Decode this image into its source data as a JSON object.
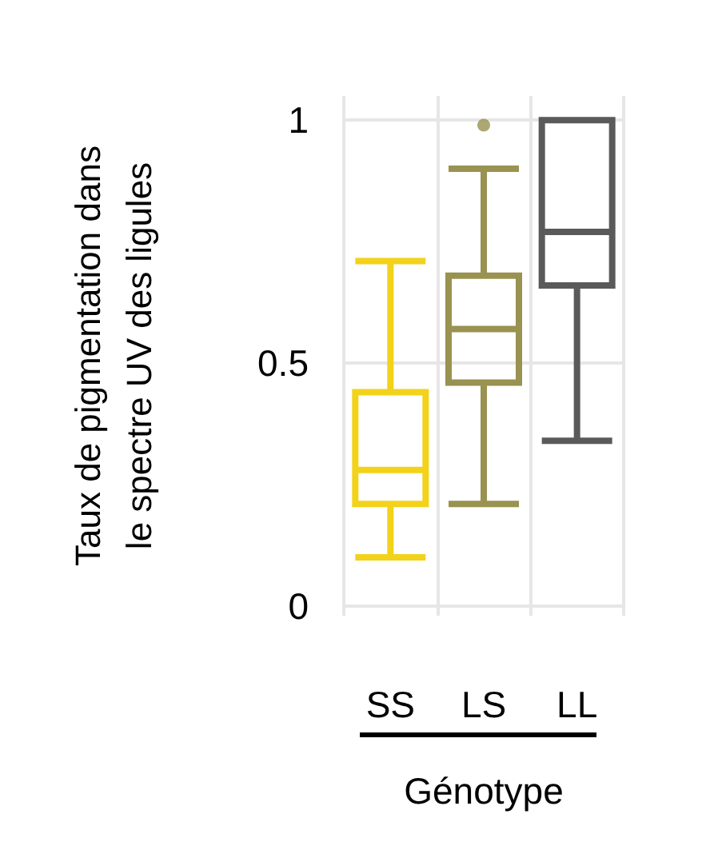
{
  "chart_data": {
    "type": "box",
    "xlabel": "Génotype",
    "ylabel": "Taux de pigmentation dans\nle spectre UV des ligules",
    "categories": [
      "SS",
      "LS",
      "LL"
    ],
    "colors": [
      "#f2d21a",
      "#999250",
      "#5a5a5a"
    ],
    "boxes": [
      {
        "low": 0.1,
        "q1": 0.21,
        "median": 0.28,
        "q3": 0.44,
        "high": 0.71
      },
      {
        "low": 0.21,
        "q1": 0.46,
        "median": 0.57,
        "q3": 0.68,
        "high": 0.9,
        "outliers": [
          0.99
        ]
      },
      {
        "low": 0.34,
        "q1": 0.66,
        "median": 0.77,
        "q3": 1.0,
        "high": 1.0
      }
    ],
    "ylim": [
      -0.02,
      1.05
    ],
    "yticks": [
      0,
      0.5,
      1
    ],
    "grid": true
  }
}
